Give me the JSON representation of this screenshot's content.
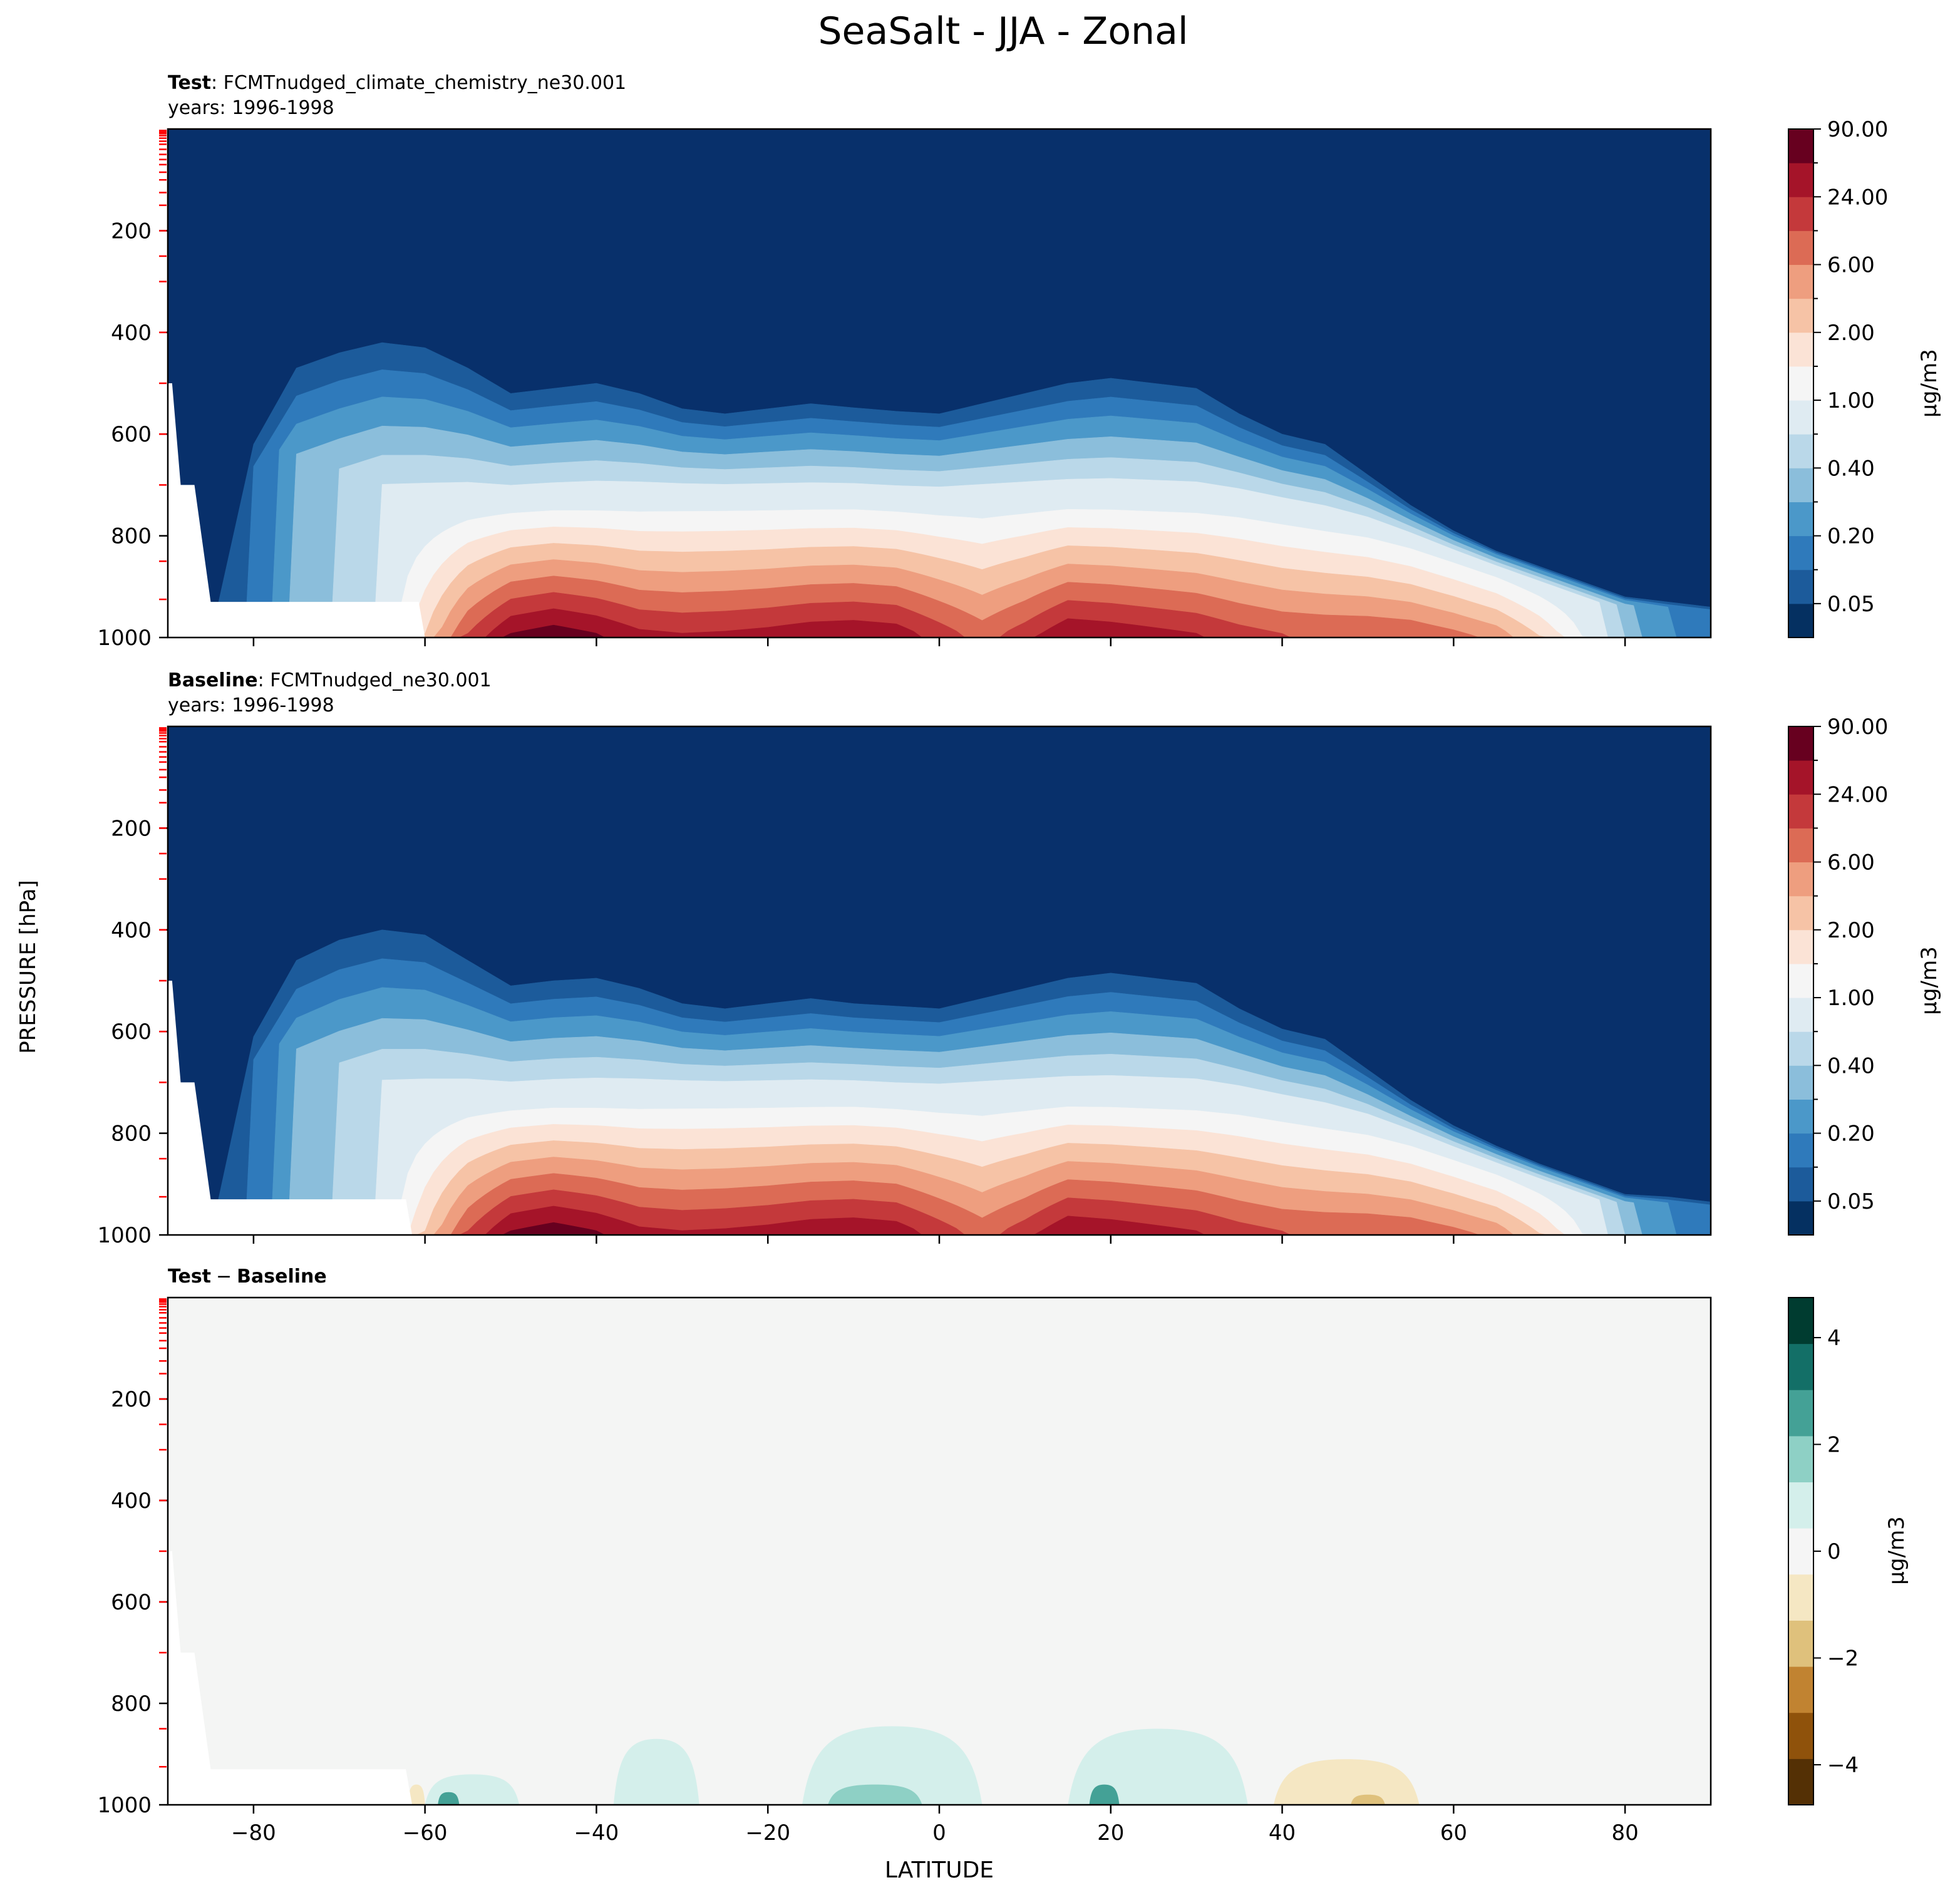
{
  "figure": {
    "title": "SeaSalt - JJA - Zonal",
    "ylabel": "PRESSURE [hPa]",
    "xlabel": "LATITUDE"
  },
  "colors": {
    "seq": [
      "#053061",
      "#1c5b9b",
      "#2f7abb",
      "#4b98c9",
      "#8bbedb",
      "#bad8e9",
      "#dfebf2",
      "#f5f5f5",
      "#fbe3d6",
      "#f6c3a6",
      "#ee9e7f",
      "#dc6b55",
      "#c4393b",
      "#a51429",
      "#67001f"
    ],
    "div": [
      "#543005",
      "#8f520b",
      "#c18331",
      "#dfc17c",
      "#f5e7c3",
      "#f5f5f5",
      "#d4efeb",
      "#8ed0c5",
      "#44a196",
      "#136f67",
      "#003c30"
    ],
    "sea": "#08306b",
    "missing": "#ffffff",
    "tick_mark": "#ff0000"
  },
  "chart_data": [
    {
      "type": "contour",
      "id": "test",
      "title_bold": "Test",
      "title_rest": ": FCMTnudged_climate_chemistry_ne30.001",
      "subtitle": "years: 1996-1998",
      "xlim": [
        -90,
        90
      ],
      "ylim": [
        1000,
        0
      ],
      "xticks": [
        -80,
        -60,
        -40,
        -20,
        0,
        20,
        40,
        60,
        80
      ],
      "yticks": [
        200,
        400,
        600,
        800,
        1000
      ],
      "colorbar": {
        "label": "μg/m3",
        "ticks": [
          "0.05",
          "0.20",
          "0.40",
          "1.00",
          "2.00",
          "6.00",
          "24.00",
          "90.00"
        ],
        "tick_positions": [
          1,
          3,
          5,
          7,
          9,
          11,
          13,
          15
        ]
      },
      "profile_lat": [
        -90,
        -85,
        -80,
        -75,
        -70,
        -65,
        -60,
        -55,
        -50,
        -45,
        -40,
        -35,
        -30,
        -25,
        -20,
        -15,
        -10,
        -5,
        0,
        5,
        10,
        15,
        20,
        25,
        30,
        35,
        40,
        45,
        50,
        55,
        60,
        65,
        70,
        75,
        80,
        85,
        90
      ],
      "surface_peak": [
        1,
        1,
        2,
        4,
        5,
        6,
        9,
        12,
        14,
        14.5,
        14,
        13.2,
        13,
        13.1,
        13.3,
        13.6,
        13.7,
        13.5,
        12.5,
        11.5,
        12.5,
        13.8,
        13.6,
        13.3,
        13,
        12.4,
        12,
        11.9,
        11.9,
        11.8,
        11.3,
        10.6,
        9,
        7,
        4.5,
        3,
        2.5
      ],
      "base_top": [
        1000,
        1000,
        880,
        800,
        770,
        740,
        735,
        725,
        722,
        718,
        716,
        714,
        712,
        712,
        712,
        712,
        712,
        716,
        718,
        716,
        714,
        712,
        712,
        714,
        716,
        722,
        735,
        750,
        765,
        790,
        820,
        850,
        880,
        910,
        940,
        960,
        970
      ],
      "upper_top": [
        1000,
        1000,
        620,
        470,
        440,
        420,
        430,
        470,
        520,
        510,
        500,
        520,
        550,
        560,
        550,
        540,
        548,
        555,
        560,
        540,
        520,
        500,
        490,
        500,
        510,
        560,
        600,
        620,
        680,
        740,
        790,
        830,
        860,
        890,
        920,
        930,
        940
      ],
      "missing_region": {
        "steps": [
          [
            -89.5,
            500
          ],
          [
            -88.5,
            700
          ],
          [
            -85,
            930
          ],
          [
            -60,
            1000
          ]
        ]
      },
      "pressure_levels": [
        3,
        6,
        9,
        13,
        18,
        24,
        30,
        40,
        50,
        60,
        70,
        85,
        100,
        125,
        150,
        200,
        250,
        300,
        400,
        500,
        600,
        700,
        850,
        925
      ]
    },
    {
      "type": "contour",
      "id": "baseline",
      "title_bold": "Baseline",
      "title_rest": ": FCMTnudged_ne30.001",
      "subtitle": "years: 1996-1998",
      "xlim": [
        -90,
        90
      ],
      "ylim": [
        1000,
        0
      ],
      "xticks": [
        -80,
        -60,
        -40,
        -20,
        0,
        20,
        40,
        60,
        80
      ],
      "yticks": [
        200,
        400,
        600,
        800,
        1000
      ],
      "colorbar": {
        "label": "μg/m3",
        "ticks": [
          "0.05",
          "0.20",
          "0.40",
          "1.00",
          "2.00",
          "6.00",
          "24.00",
          "90.00"
        ],
        "tick_positions": [
          1,
          3,
          5,
          7,
          9,
          11,
          13,
          15
        ]
      },
      "profile_lat": [
        -90,
        -85,
        -80,
        -75,
        -70,
        -65,
        -60,
        -55,
        -50,
        -45,
        -40,
        -35,
        -30,
        -25,
        -20,
        -15,
        -10,
        -5,
        0,
        5,
        10,
        15,
        20,
        25,
        30,
        35,
        40,
        45,
        50,
        55,
        60,
        65,
        70,
        75,
        80,
        85,
        90
      ],
      "surface_peak": [
        1,
        1,
        2,
        4,
        5,
        6,
        9,
        12,
        14,
        14.5,
        14,
        13.2,
        13,
        13.1,
        13.3,
        13.6,
        13.7,
        13.5,
        12.5,
        11.5,
        12.5,
        13.8,
        13.6,
        13.3,
        13,
        12.4,
        12,
        11.9,
        11.9,
        11.8,
        11.3,
        10.6,
        9,
        7,
        4.5,
        3,
        2.5
      ],
      "base_top": [
        1000,
        1000,
        880,
        800,
        770,
        740,
        735,
        725,
        722,
        718,
        716,
        714,
        712,
        712,
        712,
        712,
        712,
        716,
        718,
        716,
        714,
        712,
        712,
        714,
        716,
        722,
        735,
        750,
        765,
        790,
        820,
        850,
        880,
        910,
        940,
        960,
        970
      ],
      "upper_top": [
        1000,
        1000,
        610,
        460,
        420,
        400,
        410,
        460,
        510,
        500,
        495,
        515,
        545,
        555,
        545,
        535,
        545,
        550,
        555,
        535,
        515,
        495,
        485,
        495,
        505,
        555,
        595,
        615,
        675,
        735,
        785,
        825,
        860,
        890,
        920,
        925,
        935
      ],
      "missing_region": {
        "steps": [
          [
            -89.5,
            500
          ],
          [
            -88.5,
            700
          ],
          [
            -85,
            930
          ],
          [
            -61.5,
            1000
          ]
        ]
      },
      "pressure_levels": [
        3,
        6,
        9,
        13,
        18,
        24,
        30,
        40,
        50,
        60,
        70,
        85,
        100,
        125,
        150,
        200,
        250,
        300,
        400,
        500,
        600,
        700,
        850,
        925
      ]
    },
    {
      "type": "contour",
      "id": "diff",
      "title_bold": "Test",
      "title_sep": "−",
      "title_bold2": "Baseline",
      "xlim": [
        -90,
        90
      ],
      "ylim": [
        1000,
        0
      ],
      "xticks": [
        -80,
        -60,
        -40,
        -20,
        0,
        20,
        40,
        60,
        80
      ],
      "yticks": [
        200,
        400,
        600,
        800,
        1000
      ],
      "colorbar": {
        "label": "μg/m3",
        "ticks": [
          "−4",
          "−2",
          "0",
          "2",
          "4"
        ],
        "range": [
          -4.75,
          4.75
        ]
      },
      "anomalies": [
        {
          "lat_range": [
            -60,
            -49
          ],
          "top_p": 940,
          "level": 1
        },
        {
          "lat_range": [
            -58.5,
            -56
          ],
          "top_p": 975,
          "level": 3
        },
        {
          "lat_range": [
            -38,
            -28
          ],
          "top_p": 870,
          "level": 1
        },
        {
          "lat_range": [
            -16,
            5
          ],
          "top_p": 845,
          "level": 1
        },
        {
          "lat_range": [
            -13,
            -2
          ],
          "top_p": 960,
          "level": 2
        },
        {
          "lat_range": [
            15,
            36
          ],
          "top_p": 850,
          "level": 1
        },
        {
          "lat_range": [
            17.5,
            21
          ],
          "top_p": 960,
          "level": 3
        },
        {
          "lat_range": [
            39,
            56
          ],
          "top_p": 910,
          "level": -1
        },
        {
          "lat_range": [
            48,
            52
          ],
          "top_p": 980,
          "level": -2
        },
        {
          "lat_range": [
            -62,
            -60
          ],
          "top_p": 960,
          "level": -1
        }
      ],
      "missing_region": {
        "steps": [
          [
            -89.5,
            500
          ],
          [
            -88.5,
            700
          ],
          [
            -85,
            930
          ],
          [
            -61.5,
            1000
          ]
        ]
      },
      "pressure_levels": [
        3,
        6,
        9,
        13,
        18,
        24,
        30,
        40,
        50,
        60,
        70,
        85,
        100,
        125,
        150,
        200,
        250,
        300,
        400,
        500,
        600,
        700,
        850,
        925
      ]
    }
  ]
}
